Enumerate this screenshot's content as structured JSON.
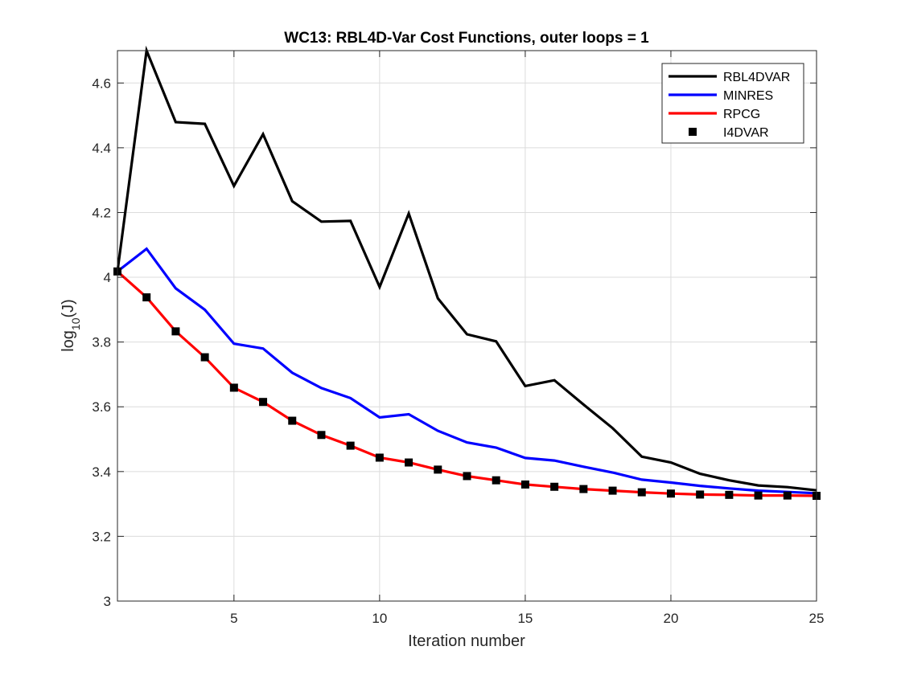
{
  "chart_data": {
    "type": "line",
    "title": "WC13: RBL4D-Var Cost Functions, outer loops = 1",
    "xlabel": "Iteration number",
    "ylabel": {
      "base": "log",
      "subscript": "10",
      "arg": "(J)"
    },
    "xlim": [
      1,
      25
    ],
    "ylim": [
      3,
      4.7
    ],
    "xticks": [
      5,
      10,
      15,
      20,
      25
    ],
    "xtick_labels": [
      "5",
      "10",
      "15",
      "20",
      "25"
    ],
    "yticks": [
      3,
      3.2,
      3.4,
      3.6,
      3.8,
      4,
      4.2,
      4.4,
      4.6
    ],
    "ytick_labels": [
      "3",
      "3.2",
      "3.4",
      "3.6",
      "3.8",
      "4",
      "4.2",
      "4.4",
      "4.6"
    ],
    "grid": true,
    "legend_position": "top-right",
    "x": [
      1,
      2,
      3,
      4,
      5,
      6,
      7,
      8,
      9,
      10,
      11,
      12,
      13,
      14,
      15,
      16,
      17,
      18,
      19,
      20,
      21,
      22,
      23,
      24,
      25
    ],
    "series": [
      {
        "name": "RBL4DVAR",
        "style": "line",
        "color": "#000000",
        "values": [
          4.018,
          4.7,
          4.479,
          4.474,
          4.282,
          4.442,
          4.235,
          4.172,
          4.174,
          3.97,
          4.197,
          3.935,
          3.824,
          3.802,
          3.664,
          3.682,
          3.607,
          3.534,
          3.446,
          3.428,
          3.393,
          3.373,
          3.357,
          3.352,
          3.342
        ]
      },
      {
        "name": "MINRES",
        "style": "line",
        "color": "#0000ff",
        "values": [
          4.018,
          4.088,
          3.966,
          3.9,
          3.795,
          3.78,
          3.705,
          3.658,
          3.627,
          3.567,
          3.577,
          3.526,
          3.49,
          3.474,
          3.442,
          3.434,
          3.415,
          3.397,
          3.375,
          3.366,
          3.356,
          3.348,
          3.341,
          3.337,
          3.333
        ]
      },
      {
        "name": "RPCG",
        "style": "line",
        "color": "#ff0000",
        "values": [
          4.018,
          3.938,
          3.833,
          3.753,
          3.659,
          3.615,
          3.557,
          3.513,
          3.48,
          3.443,
          3.428,
          3.406,
          3.386,
          3.373,
          3.36,
          3.353,
          3.346,
          3.341,
          3.336,
          3.332,
          3.329,
          3.328,
          3.326,
          3.326,
          3.325
        ]
      },
      {
        "name": "I4DVAR",
        "style": "marker",
        "color": "#000000",
        "values": [
          4.018,
          3.938,
          3.833,
          3.753,
          3.659,
          3.615,
          3.557,
          3.513,
          3.48,
          3.443,
          3.428,
          3.406,
          3.386,
          3.373,
          3.36,
          3.353,
          3.346,
          3.341,
          3.336,
          3.332,
          3.329,
          3.328,
          3.326,
          3.326,
          3.325
        ]
      }
    ]
  }
}
